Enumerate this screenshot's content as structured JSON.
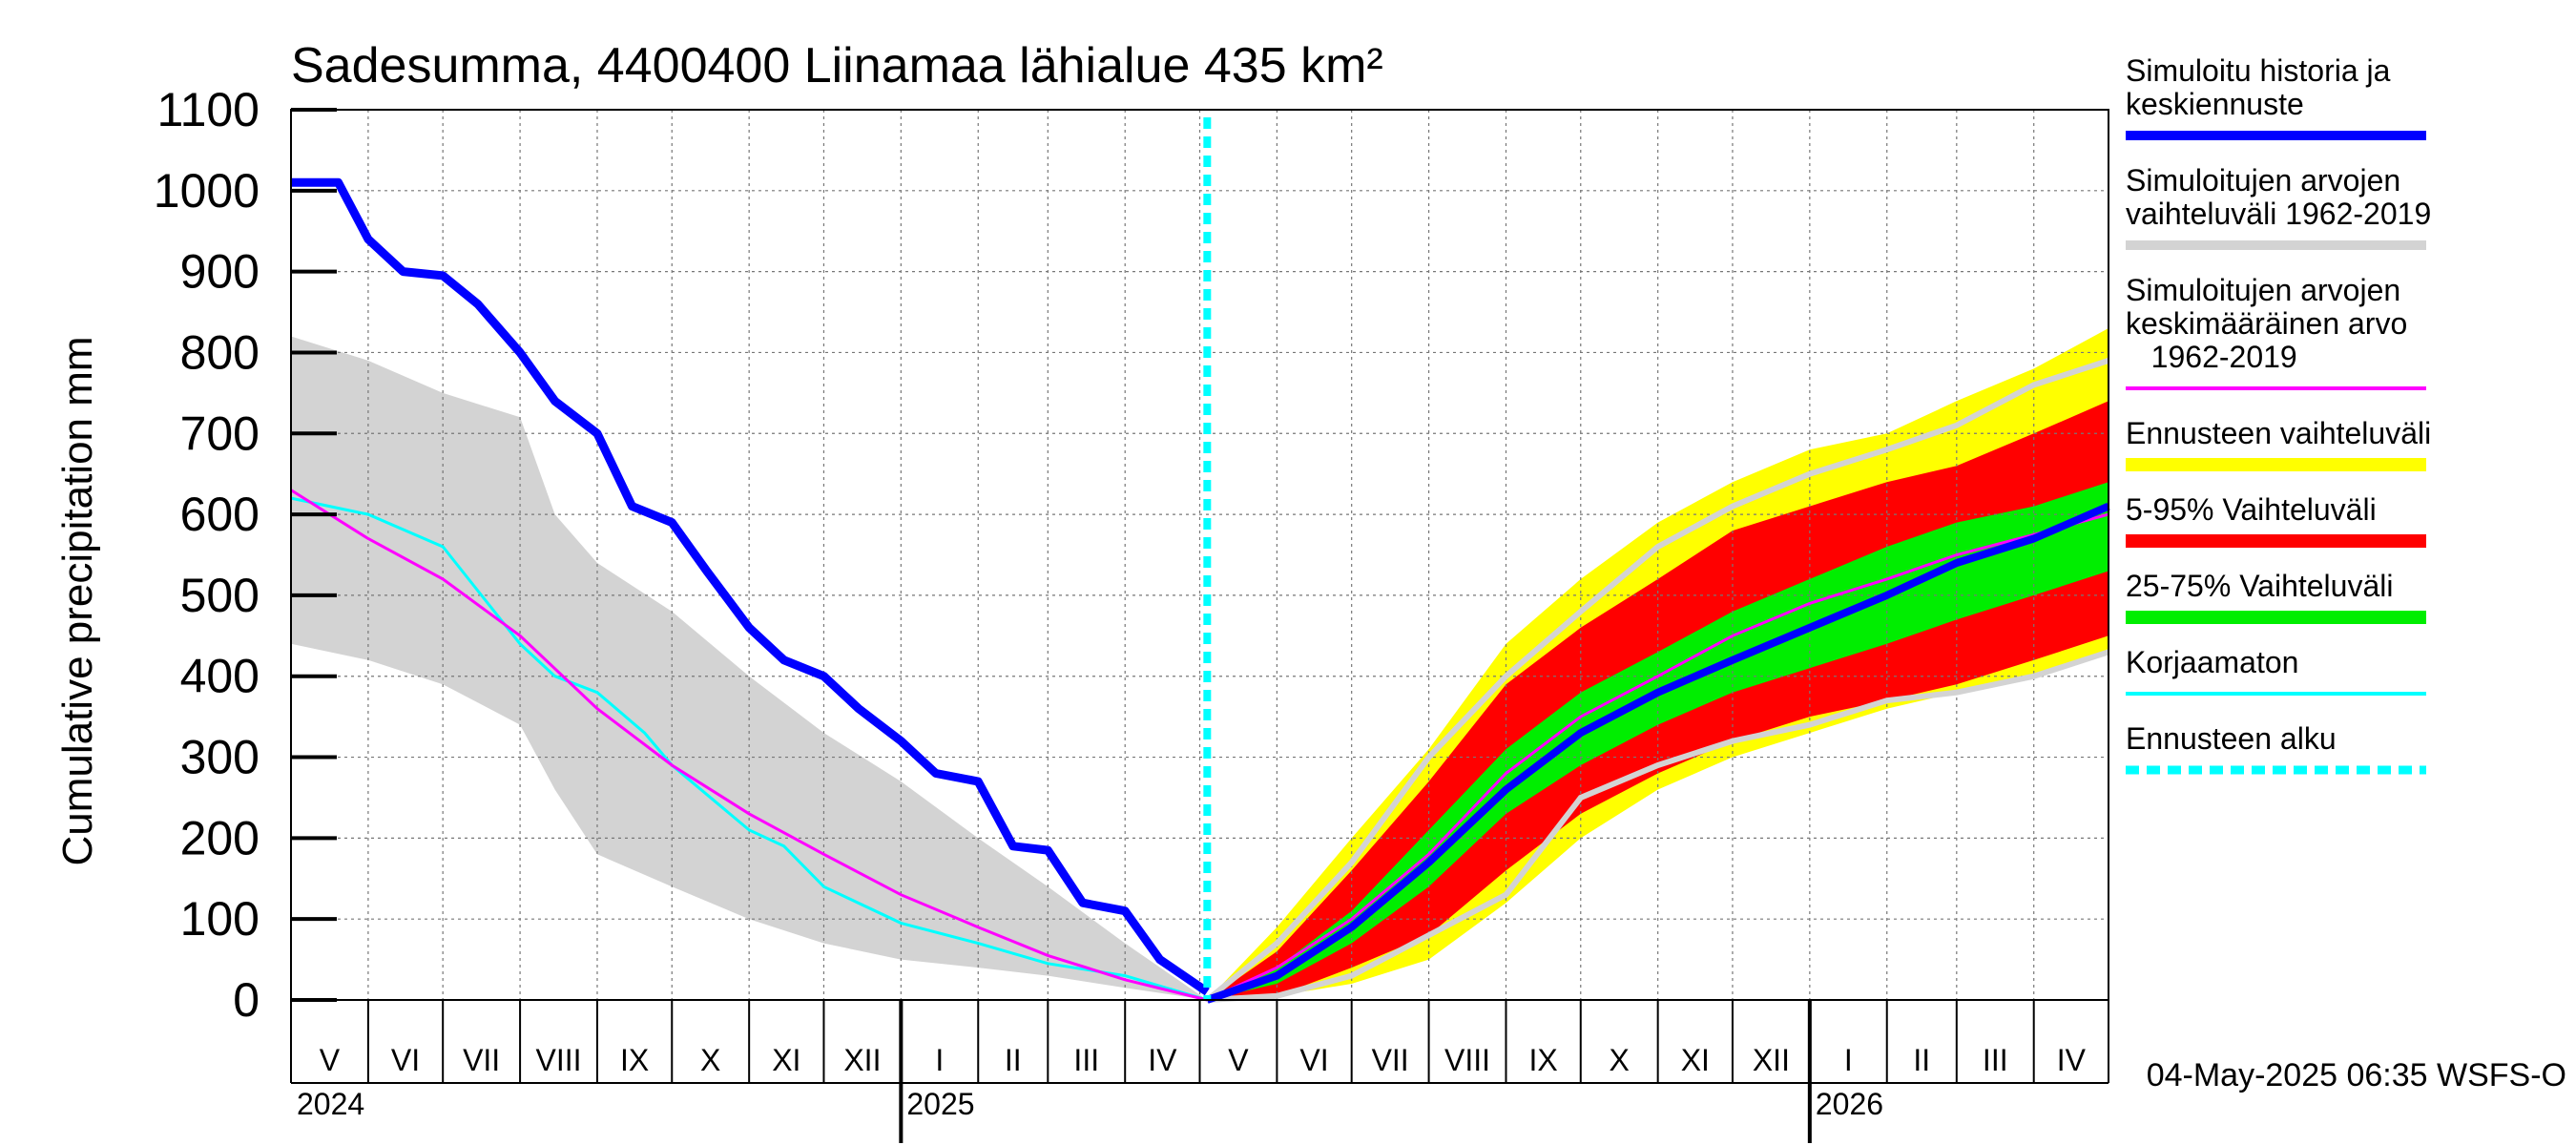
{
  "chart_data": {
    "type": "area",
    "title": "Sadesumma, 4400400 Liinamaa lähialue 435 km²",
    "ylabel": "Cumulative precipitation   mm",
    "ylim": [
      0,
      1100
    ],
    "yticks": [
      0,
      100,
      200,
      300,
      400,
      500,
      600,
      700,
      800,
      900,
      1000,
      1100
    ],
    "grid": true,
    "legend_position": "right",
    "forecast_start": "2025-05-04",
    "footer": "04-May-2025 06:35 WSFS-O",
    "months": [
      {
        "label": "V",
        "start": "2024-05-01"
      },
      {
        "label": "VI",
        "start": "2024-06-01"
      },
      {
        "label": "VII",
        "start": "2024-07-01"
      },
      {
        "label": "VIII",
        "start": "2024-08-01"
      },
      {
        "label": "IX",
        "start": "2024-09-01"
      },
      {
        "label": "X",
        "start": "2024-10-01"
      },
      {
        "label": "XI",
        "start": "2024-11-01"
      },
      {
        "label": "XII",
        "start": "2024-12-01"
      },
      {
        "label": "I",
        "start": "2025-01-01"
      },
      {
        "label": "II",
        "start": "2025-02-01"
      },
      {
        "label": "III",
        "start": "2025-03-01"
      },
      {
        "label": "IV",
        "start": "2025-04-01"
      },
      {
        "label": "V",
        "start": "2025-05-01"
      },
      {
        "label": "VI",
        "start": "2025-06-01"
      },
      {
        "label": "VII",
        "start": "2025-07-01"
      },
      {
        "label": "VIII",
        "start": "2025-08-01"
      },
      {
        "label": "IX",
        "start": "2025-09-01"
      },
      {
        "label": "X",
        "start": "2025-10-01"
      },
      {
        "label": "XI",
        "start": "2025-11-01"
      },
      {
        "label": "XII",
        "start": "2025-12-01"
      },
      {
        "label": "I",
        "start": "2026-01-01"
      },
      {
        "label": "II",
        "start": "2026-02-01"
      },
      {
        "label": "III",
        "start": "2026-03-01"
      },
      {
        "label": "IV",
        "start": "2026-04-01"
      }
    ],
    "years": [
      {
        "label": "2024",
        "at": "2024-05-01"
      },
      {
        "label": "2025",
        "at": "2025-01-01"
      },
      {
        "label": "2026",
        "at": "2026-01-01"
      }
    ],
    "xlim": [
      "2024-05-01",
      "2026-05-01"
    ],
    "legend": [
      {
        "label": "Simuloitu historia ja\nkeskiennuste",
        "color": "#0000ff",
        "style": "line-thick"
      },
      {
        "label": "Simuloitujen arvojen\nvaihteluväli 1962-2019",
        "color": "#d3d3d3",
        "style": "line-thick"
      },
      {
        "label": "Simuloitujen arvojen\nkeskimääräinen arvo\n   1962-2019",
        "color": "#ff00ff",
        "style": "line-thin"
      },
      {
        "label": "Ennusteen vaihteluväli",
        "color": "#ffff00",
        "style": "band"
      },
      {
        "label": "5-95% Vaihteluväli",
        "color": "#ff0000",
        "style": "band"
      },
      {
        "label": "25-75% Vaihteluväli",
        "color": "#00ee00",
        "style": "band"
      },
      {
        "label": "Korjaamaton",
        "color": "#00ffff",
        "style": "line-thin"
      },
      {
        "label": "Ennusteen alku",
        "color": "#00ffff",
        "style": "dashed"
      }
    ],
    "history_range_1962_2019": {
      "x": [
        "2024-05-01",
        "2024-06-01",
        "2024-07-01",
        "2024-08-01",
        "2024-08-15",
        "2024-09-01",
        "2024-10-01",
        "2024-11-01",
        "2024-12-01",
        "2025-01-01",
        "2025-02-01",
        "2025-03-01",
        "2025-04-01",
        "2025-05-04"
      ],
      "upper": [
        820,
        790,
        750,
        720,
        600,
        540,
        480,
        400,
        330,
        270,
        200,
        140,
        70,
        0
      ],
      "lower": [
        440,
        420,
        390,
        340,
        260,
        180,
        140,
        100,
        70,
        50,
        40,
        30,
        15,
        0
      ]
    },
    "history_mean": {
      "x": [
        "2024-05-01",
        "2024-06-01",
        "2024-07-01",
        "2024-08-01",
        "2024-09-01",
        "2024-10-01",
        "2024-11-01",
        "2024-12-01",
        "2025-01-01",
        "2025-02-01",
        "2025-03-01",
        "2025-04-01",
        "2025-05-04"
      ],
      "y": [
        630,
        570,
        520,
        450,
        360,
        290,
        230,
        180,
        130,
        90,
        55,
        25,
        0
      ]
    },
    "simulated_history": {
      "x": [
        "2024-05-01",
        "2024-05-20",
        "2024-06-01",
        "2024-06-15",
        "2024-07-01",
        "2024-07-15",
        "2024-08-01",
        "2024-08-15",
        "2024-09-01",
        "2024-09-15",
        "2024-10-01",
        "2024-10-15",
        "2024-11-01",
        "2024-11-15",
        "2024-12-01",
        "2024-12-15",
        "2025-01-01",
        "2025-01-15",
        "2025-02-01",
        "2025-02-15",
        "2025-03-01",
        "2025-03-15",
        "2025-04-01",
        "2025-04-15",
        "2025-05-04"
      ],
      "y": [
        1010,
        1010,
        940,
        900,
        895,
        860,
        800,
        740,
        700,
        610,
        590,
        530,
        460,
        420,
        400,
        360,
        320,
        280,
        270,
        190,
        185,
        120,
        110,
        50,
        10
      ]
    },
    "uncorrected": {
      "x": [
        "2024-05-01",
        "2024-06-01",
        "2024-07-01",
        "2024-08-01",
        "2024-08-15",
        "2024-09-01",
        "2024-09-20",
        "2024-10-01",
        "2024-11-01",
        "2024-11-15",
        "2024-12-01",
        "2025-01-01",
        "2025-02-01",
        "2025-03-01",
        "2025-04-01",
        "2025-05-04"
      ],
      "y": [
        620,
        600,
        560,
        440,
        400,
        380,
        330,
        290,
        210,
        190,
        140,
        95,
        70,
        45,
        30,
        0
      ]
    },
    "forecast_range": {
      "x": [
        "2025-05-04",
        "2025-06-01",
        "2025-07-01",
        "2025-08-01",
        "2025-09-01",
        "2025-10-01",
        "2025-11-01",
        "2025-12-01",
        "2026-01-01",
        "2026-02-01",
        "2026-03-01",
        "2026-04-01",
        "2026-05-01"
      ],
      "upper": [
        0,
        90,
        200,
        310,
        440,
        520,
        590,
        640,
        680,
        700,
        740,
        780,
        830
      ],
      "lower": [
        0,
        5,
        20,
        50,
        120,
        200,
        260,
        300,
        330,
        360,
        380,
        400,
        430
      ]
    },
    "forecast_5_95": {
      "x": [
        "2025-05-04",
        "2025-06-01",
        "2025-07-01",
        "2025-08-01",
        "2025-09-01",
        "2025-10-01",
        "2025-11-01",
        "2025-12-01",
        "2026-01-01",
        "2026-02-01",
        "2026-03-01",
        "2026-04-01",
        "2026-05-01"
      ],
      "upper": [
        0,
        60,
        160,
        270,
        390,
        460,
        520,
        580,
        610,
        640,
        660,
        700,
        740
      ],
      "lower": [
        0,
        5,
        40,
        80,
        160,
        230,
        280,
        320,
        350,
        370,
        390,
        420,
        450
      ]
    },
    "forecast_25_75": {
      "x": [
        "2025-05-04",
        "2025-06-01",
        "2025-07-01",
        "2025-08-01",
        "2025-09-01",
        "2025-10-01",
        "2025-11-01",
        "2025-12-01",
        "2026-01-01",
        "2026-02-01",
        "2026-03-01",
        "2026-04-01",
        "2026-05-01"
      ],
      "upper": [
        0,
        40,
        110,
        210,
        310,
        380,
        430,
        480,
        520,
        560,
        590,
        610,
        640
      ],
      "lower": [
        0,
        20,
        70,
        140,
        230,
        290,
        340,
        380,
        410,
        440,
        470,
        500,
        530
      ]
    },
    "forecast_median": {
      "x": [
        "2025-05-04",
        "2025-06-01",
        "2025-07-01",
        "2025-08-01",
        "2025-09-01",
        "2025-10-01",
        "2025-11-01",
        "2025-12-01",
        "2026-01-01",
        "2026-02-01",
        "2026-03-01",
        "2026-04-01",
        "2026-05-01"
      ],
      "y": [
        0,
        30,
        90,
        170,
        260,
        330,
        380,
        420,
        460,
        500,
        540,
        570,
        610
      ]
    },
    "forecast_mean_1962_2019": {
      "x": [
        "2025-05-04",
        "2025-06-01",
        "2025-07-01",
        "2025-08-01",
        "2025-09-01",
        "2025-10-01",
        "2025-11-01",
        "2025-12-01",
        "2026-01-01",
        "2026-02-01",
        "2026-03-01",
        "2026-04-01",
        "2026-05-01"
      ],
      "y": [
        0,
        40,
        100,
        180,
        280,
        350,
        400,
        450,
        490,
        520,
        550,
        575,
        600
      ]
    },
    "climate_upper_1962_2019": {
      "x": [
        "2025-05-04",
        "2025-06-01",
        "2025-07-01",
        "2025-08-01",
        "2025-09-01",
        "2025-10-01",
        "2025-11-01",
        "2025-12-01",
        "2026-01-01",
        "2026-02-01",
        "2026-03-01",
        "2026-04-01",
        "2026-05-01"
      ],
      "y": [
        0,
        70,
        170,
        300,
        400,
        480,
        560,
        610,
        650,
        680,
        710,
        760,
        790
      ]
    },
    "climate_lower_1962_2019": {
      "x": [
        "2025-05-04",
        "2025-06-01",
        "2025-07-01",
        "2025-08-01",
        "2025-09-01",
        "2025-10-01",
        "2025-11-01",
        "2025-12-01",
        "2026-01-01",
        "2026-02-01",
        "2026-03-01",
        "2026-04-01",
        "2026-05-01"
      ],
      "y": [
        0,
        5,
        30,
        80,
        130,
        250,
        290,
        320,
        340,
        370,
        380,
        400,
        430
      ]
    }
  }
}
